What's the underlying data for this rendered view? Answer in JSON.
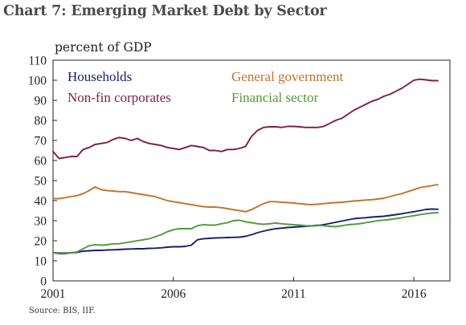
{
  "header": {
    "title": "Chart 7:  Emerging Market Debt by Sector",
    "source": "Source: BIS, IIF."
  },
  "chart_data": {
    "type": "line",
    "title": "Chart 7:  Emerging Market Debt by Sector",
    "ylabel": "percent of GDP",
    "xlabel": "",
    "xlim": [
      2001,
      2017.5
    ],
    "ylim": [
      0,
      110
    ],
    "grid": false,
    "legend_position": "top, two columns",
    "x_ticks": [
      {
        "label": "2001",
        "value": 2001
      },
      {
        "label": "2006",
        "value": 2006
      },
      {
        "label": "2011",
        "value": 2011
      },
      {
        "label": "2016",
        "value": 2016
      }
    ],
    "y_ticks": [
      {
        "label": "0",
        "value": 0
      },
      {
        "label": "10",
        "value": 10
      },
      {
        "label": "20",
        "value": 20
      },
      {
        "label": "30",
        "value": 30
      },
      {
        "label": "40",
        "value": 40
      },
      {
        "label": "50",
        "value": 50
      },
      {
        "label": "60",
        "value": 60
      },
      {
        "label": "70",
        "value": 70
      },
      {
        "label": "80",
        "value": 80
      },
      {
        "label": "90",
        "value": 90
      },
      {
        "label": "100",
        "value": 100
      },
      {
        "label": "110",
        "value": 110
      }
    ],
    "x": [
      2001.0,
      2001.25,
      2001.5,
      2001.75,
      2002.0,
      2002.25,
      2002.5,
      2002.75,
      2003.0,
      2003.25,
      2003.5,
      2003.75,
      2004.0,
      2004.25,
      2004.5,
      2004.75,
      2005.0,
      2005.25,
      2005.5,
      2005.75,
      2006.0,
      2006.25,
      2006.5,
      2006.75,
      2007.0,
      2007.25,
      2007.5,
      2007.75,
      2008.0,
      2008.25,
      2008.5,
      2008.75,
      2009.0,
      2009.25,
      2009.5,
      2009.75,
      2010.0,
      2010.25,
      2010.5,
      2010.75,
      2011.0,
      2011.25,
      2011.5,
      2011.75,
      2012.0,
      2012.25,
      2012.5,
      2012.75,
      2013.0,
      2013.25,
      2013.5,
      2013.75,
      2014.0,
      2014.25,
      2014.5,
      2014.75,
      2015.0,
      2015.25,
      2015.5,
      2015.75,
      2016.0,
      2016.25,
      2016.5,
      2016.75,
      2017.0,
      2017.25
    ],
    "series": [
      {
        "name": "Households",
        "color": "#1a1f6e",
        "values": [
          14.0,
          13.8,
          13.8,
          14.0,
          14.2,
          14.8,
          15.0,
          15.2,
          15.2,
          15.4,
          15.5,
          15.6,
          15.8,
          15.9,
          16.0,
          16.0,
          16.2,
          16.3,
          16.5,
          16.8,
          17.0,
          17.0,
          17.2,
          17.8,
          20.5,
          21.0,
          21.2,
          21.4,
          21.5,
          21.6,
          21.7,
          21.8,
          22.2,
          23.0,
          24.0,
          24.8,
          25.5,
          26.0,
          26.3,
          26.6,
          26.8,
          27.0,
          27.2,
          27.4,
          27.6,
          28.0,
          28.6,
          29.2,
          29.8,
          30.4,
          31.0,
          31.3,
          31.5,
          31.8,
          32.0,
          32.2,
          32.6,
          33.0,
          33.5,
          34.0,
          34.5,
          35.0,
          35.6,
          35.8,
          35.7,
          null
        ]
      },
      {
        "name": "Non-fin corporates",
        "color": "#7a1f48",
        "values": [
          64.5,
          61.0,
          61.5,
          62.0,
          62.0,
          65.5,
          66.5,
          68.0,
          68.5,
          69.0,
          70.5,
          71.5,
          71.0,
          70.0,
          71.0,
          69.5,
          68.5,
          68.0,
          67.5,
          66.5,
          66.0,
          65.5,
          66.5,
          67.5,
          67.0,
          66.5,
          65.0,
          65.0,
          64.5,
          65.5,
          65.5,
          66.0,
          67.0,
          72.0,
          75.0,
          76.5,
          76.8,
          76.8,
          76.5,
          77.0,
          77.0,
          76.8,
          76.5,
          76.5,
          76.5,
          77.0,
          78.5,
          80.0,
          81.0,
          83.0,
          85.0,
          86.5,
          88.0,
          89.5,
          90.5,
          92.0,
          93.0,
          94.5,
          96.0,
          98.0,
          100.0,
          100.5,
          100.2,
          99.8,
          99.8,
          null
        ]
      },
      {
        "name": "General government",
        "color": "#c2732a",
        "values": [
          41.0,
          41.0,
          41.5,
          42.0,
          42.5,
          43.5,
          45.0,
          46.8,
          45.5,
          45.0,
          44.8,
          44.5,
          44.5,
          44.0,
          43.5,
          43.0,
          42.5,
          42.0,
          41.0,
          40.0,
          39.5,
          39.0,
          38.5,
          38.0,
          37.5,
          37.0,
          36.8,
          36.8,
          36.5,
          36.0,
          35.5,
          35.0,
          34.5,
          35.5,
          37.0,
          38.5,
          39.5,
          39.5,
          39.2,
          39.0,
          38.8,
          38.5,
          38.2,
          38.0,
          38.2,
          38.5,
          38.8,
          39.0,
          39.2,
          39.5,
          39.8,
          40.0,
          40.3,
          40.5,
          40.8,
          41.2,
          42.0,
          42.8,
          43.5,
          44.5,
          45.5,
          46.5,
          47.0,
          47.5,
          48.0,
          null
        ]
      },
      {
        "name": "Financial sector",
        "color": "#4e9a3a",
        "values": [
          14.0,
          13.5,
          13.5,
          14.0,
          14.5,
          16.0,
          17.5,
          18.0,
          17.8,
          18.0,
          18.5,
          18.5,
          19.0,
          19.5,
          20.0,
          20.5,
          21.0,
          22.0,
          23.0,
          24.5,
          25.5,
          26.0,
          26.0,
          26.0,
          27.5,
          28.0,
          27.8,
          27.8,
          28.5,
          29.0,
          30.0,
          30.2,
          29.5,
          29.0,
          28.5,
          28.2,
          28.5,
          28.8,
          28.5,
          28.2,
          28.0,
          27.8,
          27.5,
          27.5,
          27.8,
          27.5,
          27.2,
          27.0,
          27.5,
          28.0,
          28.2,
          28.5,
          29.0,
          29.5,
          30.0,
          30.3,
          30.6,
          31.0,
          31.5,
          32.0,
          32.5,
          33.0,
          33.5,
          33.8,
          34.0,
          null
        ]
      }
    ]
  }
}
